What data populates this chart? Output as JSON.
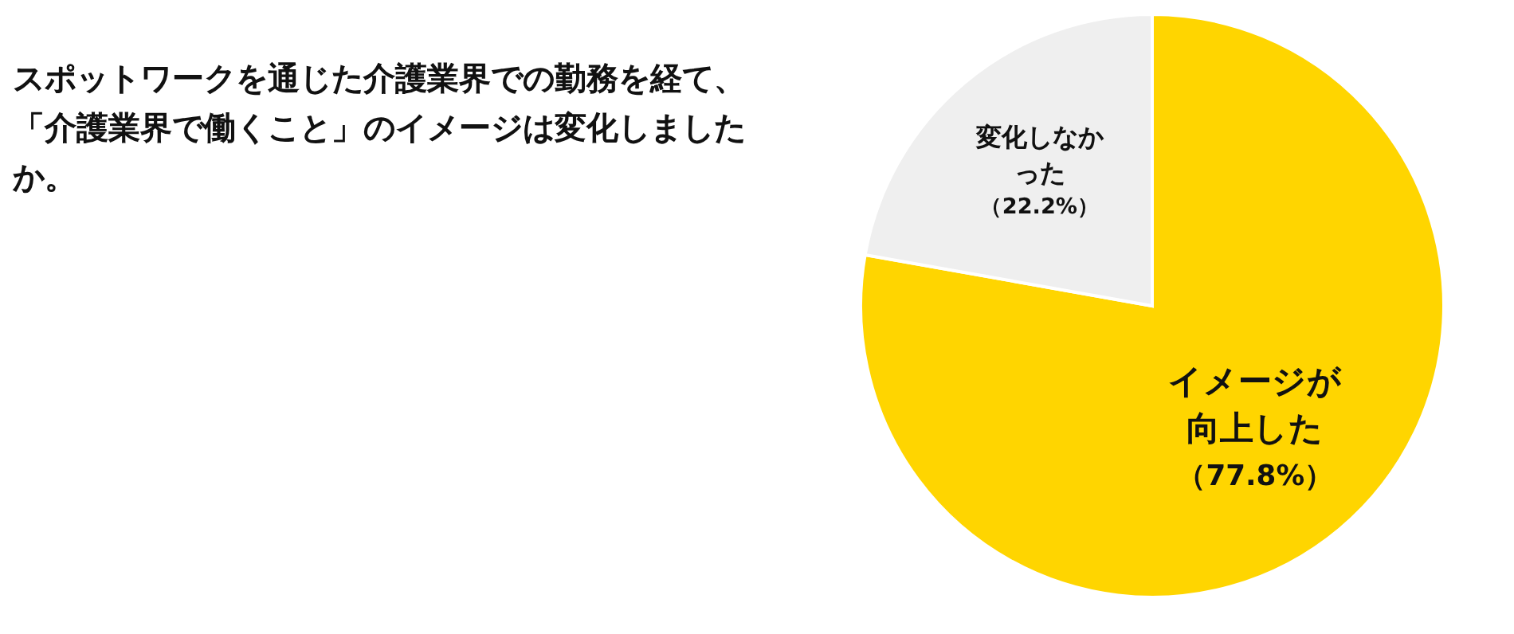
{
  "chart_data": {
    "type": "pie",
    "title": "スポットワークを通じた介護業界での勤務を経て、「介護業界で働くこと」のイメージは変化しましたか。",
    "categories": [
      "イメージが向上した",
      "変化しなかった"
    ],
    "values": [
      77.8,
      22.2
    ],
    "colors": [
      "#ffd500",
      "#efefef"
    ],
    "value_labels": [
      "（77.8%）",
      "（22.2%）"
    ]
  }
}
